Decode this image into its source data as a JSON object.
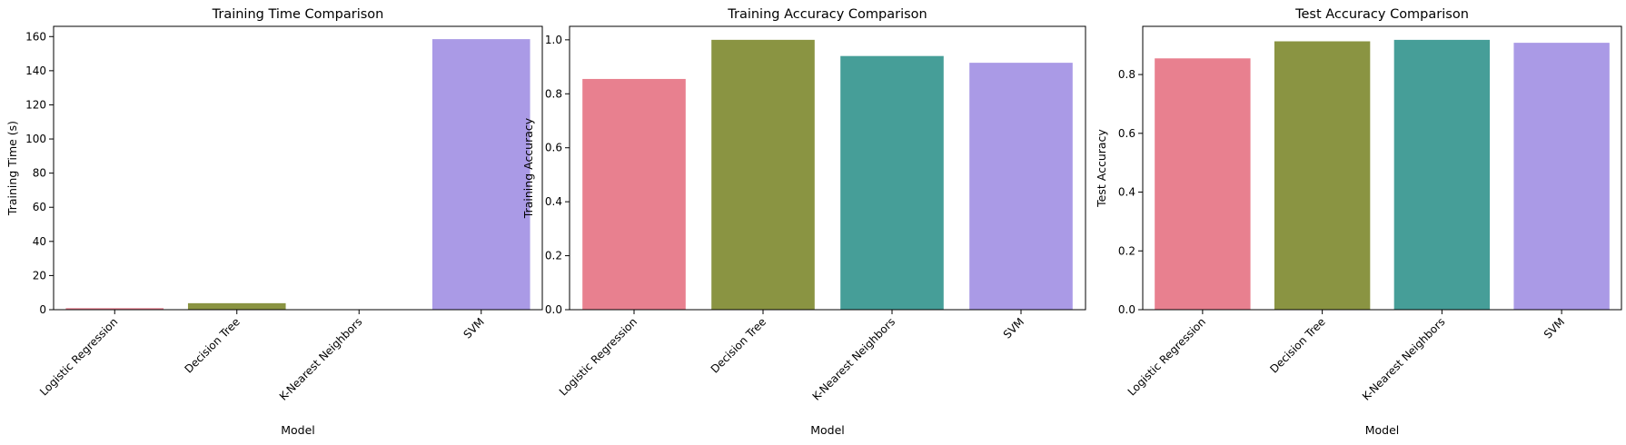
{
  "chart_data": [
    {
      "type": "bar",
      "title": "Training Time Comparison",
      "xlabel": "Model",
      "ylabel": "Training Time (s)",
      "categories": [
        "Logistic Regression",
        "Decision Tree",
        "K-Nearest Neighbors",
        "SVM"
      ],
      "values": [
        0.9,
        3.8,
        0.05,
        158.5
      ],
      "colors": [
        "#e8808f",
        "#8a9442",
        "#469e98",
        "#aa9ae6"
      ],
      "ylim": [
        0,
        166
      ],
      "yticks": [
        0,
        20,
        40,
        60,
        80,
        100,
        120,
        140,
        160
      ],
      "ytick_labels": [
        "0",
        "20",
        "40",
        "60",
        "80",
        "100",
        "120",
        "140",
        "160"
      ],
      "grid": false,
      "legend": "none"
    },
    {
      "type": "bar",
      "title": "Training Accuracy Comparison",
      "xlabel": "Model",
      "ylabel": "Training Accuracy",
      "categories": [
        "Logistic Regression",
        "Decision Tree",
        "K-Nearest Neighbors",
        "SVM"
      ],
      "values": [
        0.855,
        1.0,
        0.94,
        0.915
      ],
      "colors": [
        "#e8808f",
        "#8a9442",
        "#469e98",
        "#aa9ae6"
      ],
      "ylim": [
        0,
        1.05
      ],
      "yticks": [
        0.0,
        0.2,
        0.4,
        0.6,
        0.8,
        1.0
      ],
      "ytick_labels": [
        "0.0",
        "0.2",
        "0.4",
        "0.6",
        "0.8",
        "1.0"
      ],
      "grid": false,
      "legend": "none"
    },
    {
      "type": "bar",
      "title": "Test Accuracy Comparison",
      "xlabel": "Model",
      "ylabel": "Test Accuracy",
      "categories": [
        "Logistic Regression",
        "Decision Tree",
        "K-Nearest Neighbors",
        "SVM"
      ],
      "values": [
        0.855,
        0.913,
        0.918,
        0.908
      ],
      "colors": [
        "#e8808f",
        "#8a9442",
        "#469e98",
        "#aa9ae6"
      ],
      "ylim": [
        0,
        0.964
      ],
      "yticks": [
        0.0,
        0.2,
        0.4,
        0.6,
        0.8
      ],
      "ytick_labels": [
        "0.0",
        "0.2",
        "0.4",
        "0.6",
        "0.8"
      ],
      "grid": false,
      "legend": "none"
    }
  ]
}
